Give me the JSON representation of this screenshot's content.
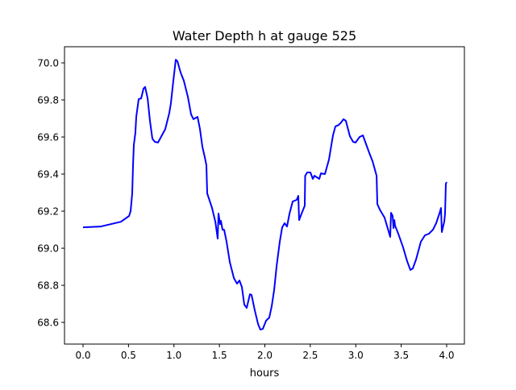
{
  "chart_data": {
    "type": "line",
    "title": "Water Depth h at gauge 525",
    "xlabel": "hours",
    "ylabel": "",
    "xlim": [
      -0.204,
      4.195
    ],
    "ylim": [
      68.483,
      70.087
    ],
    "grid": false,
    "xticks": [
      0.0,
      0.5,
      1.0,
      1.5,
      2.0,
      2.5,
      3.0,
      3.5,
      4.0
    ],
    "xtick_labels": [
      "0.0",
      "0.5",
      "1.0",
      "1.5",
      "2.0",
      "2.5",
      "3.0",
      "3.5",
      "4.0"
    ],
    "yticks": [
      68.6,
      68.8,
      69.0,
      69.2,
      69.4,
      69.6,
      69.8,
      70.0
    ],
    "ytick_labels": [
      "68.6",
      "68.8",
      "69.0",
      "69.2",
      "69.4",
      "69.6",
      "69.8",
      "70.0"
    ],
    "series": [
      {
        "name": "h",
        "color": "#0000ff",
        "x": [
          0.0,
          0.195,
          0.417,
          0.506,
          0.523,
          0.541,
          0.55,
          0.559,
          0.576,
          0.585,
          0.612,
          0.639,
          0.665,
          0.683,
          0.71,
          0.736,
          0.763,
          0.789,
          0.825,
          0.905,
          0.949,
          0.967,
          0.993,
          1.02,
          1.038,
          1.073,
          1.109,
          1.153,
          1.188,
          1.215,
          1.259,
          1.286,
          1.313,
          1.339,
          1.357,
          1.366,
          1.419,
          1.455,
          1.481,
          1.49,
          1.508,
          1.517,
          1.534,
          1.552,
          1.579,
          1.614,
          1.659,
          1.694,
          1.721,
          1.747,
          1.774,
          1.8,
          1.836,
          1.854,
          1.889,
          1.925,
          1.951,
          1.978,
          2.013,
          2.049,
          2.075,
          2.102,
          2.129,
          2.164,
          2.191,
          2.217,
          2.244,
          2.271,
          2.306,
          2.35,
          2.368,
          2.377,
          2.404,
          2.439,
          2.443,
          2.466,
          2.501,
          2.528,
          2.545,
          2.572,
          2.599,
          2.616,
          2.661,
          2.705,
          2.749,
          2.776,
          2.812,
          2.838,
          2.865,
          2.891,
          2.936,
          2.971,
          2.998,
          3.042,
          3.078,
          3.104,
          3.149,
          3.184,
          3.229,
          3.237,
          3.264,
          3.317,
          3.353,
          3.379,
          3.388,
          3.406,
          3.415,
          3.424,
          3.432,
          3.468,
          3.521,
          3.565,
          3.601,
          3.627,
          3.663,
          3.716,
          3.761,
          3.805,
          3.849,
          3.885,
          3.92,
          3.938,
          3.947,
          3.973,
          3.982,
          3.991,
          4.0
        ],
        "y": [
          69.113,
          69.117,
          69.143,
          69.174,
          69.2,
          69.296,
          69.448,
          69.557,
          69.622,
          69.709,
          69.804,
          69.809,
          69.861,
          69.87,
          69.809,
          69.687,
          69.591,
          69.574,
          69.57,
          69.643,
          69.73,
          69.783,
          69.904,
          70.017,
          70.009,
          69.948,
          69.904,
          69.817,
          69.722,
          69.696,
          69.709,
          69.643,
          69.548,
          69.491,
          69.448,
          69.296,
          69.217,
          69.143,
          69.052,
          69.187,
          69.13,
          69.148,
          69.1,
          69.1,
          69.035,
          68.926,
          68.839,
          68.809,
          68.826,
          68.791,
          68.696,
          68.678,
          68.752,
          68.748,
          68.665,
          68.591,
          68.561,
          68.565,
          68.609,
          68.626,
          68.687,
          68.774,
          68.904,
          69.035,
          69.113,
          69.135,
          69.117,
          69.187,
          69.252,
          69.261,
          69.283,
          69.152,
          69.187,
          69.23,
          69.391,
          69.409,
          69.409,
          69.374,
          69.391,
          69.383,
          69.374,
          69.404,
          69.4,
          69.478,
          69.609,
          69.657,
          69.665,
          69.678,
          69.696,
          69.687,
          69.604,
          69.574,
          69.57,
          69.6,
          69.609,
          69.574,
          69.513,
          69.47,
          69.391,
          69.239,
          69.209,
          69.165,
          69.104,
          69.061,
          69.191,
          69.174,
          69.109,
          69.152,
          69.122,
          69.078,
          69.004,
          68.93,
          68.883,
          68.891,
          68.939,
          69.035,
          69.07,
          69.078,
          69.1,
          69.135,
          69.187,
          69.217,
          69.087,
          69.143,
          69.187,
          69.348,
          69.357
        ]
      }
    ]
  }
}
